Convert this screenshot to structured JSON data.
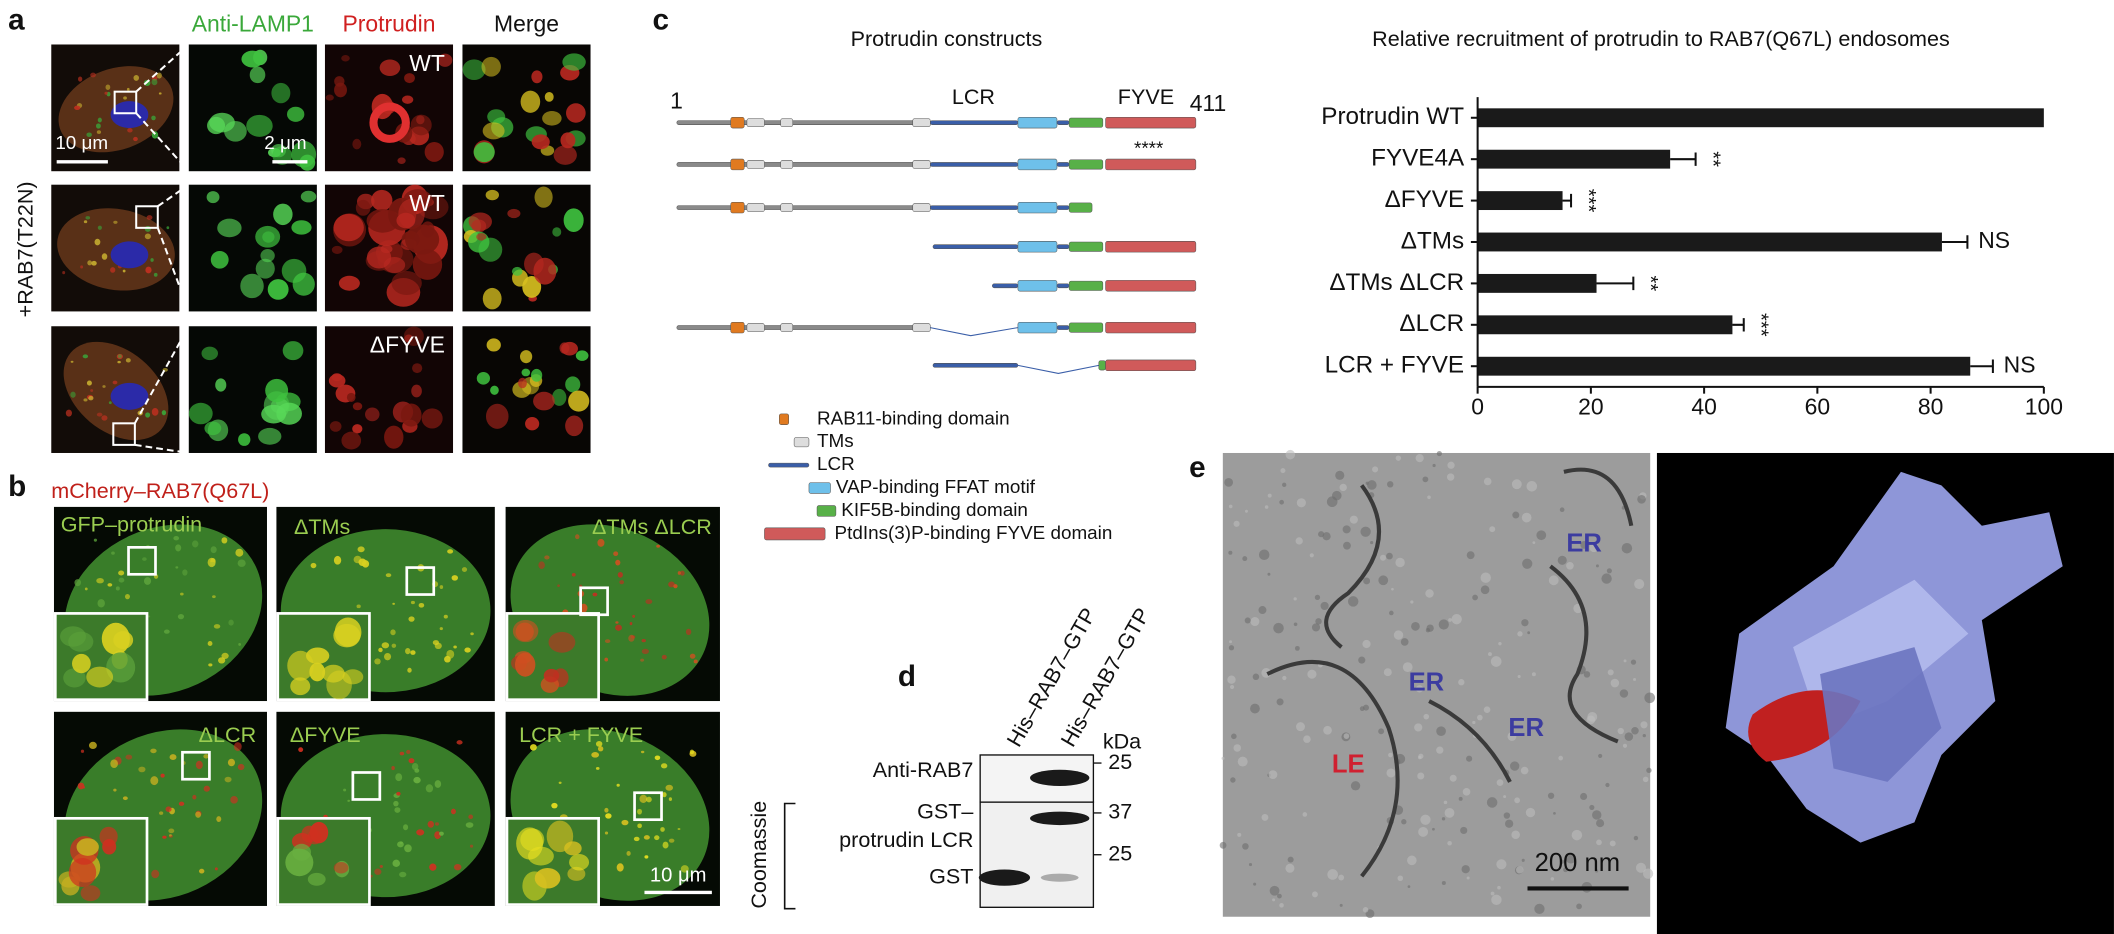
{
  "figure": {
    "a": {
      "label": "a",
      "columns": [
        "Anti-LAMP1",
        "Protrudin",
        "Merge"
      ],
      "row_label": "+RAB7(T22N)",
      "image_labels": [
        "WT",
        "WT",
        "ΔFYVE"
      ],
      "scale_bars": [
        "10 μm",
        "2 μm"
      ]
    },
    "b": {
      "label": "b",
      "title": "mCherry–RAB7(Q67L)",
      "image_labels": [
        "GFP–protrudin",
        "ΔTMs",
        "ΔTMs ΔLCR",
        "ΔLCR",
        "ΔFYVE",
        "LCR + FYVE"
      ],
      "scale_bar": "10 μm"
    },
    "c": {
      "label": "c",
      "constructs_title": "Protrudin constructs",
      "start": "1",
      "end": "411",
      "regions": [
        "LCR",
        "FYVE"
      ],
      "significance": "****",
      "legend": [
        "RAB11-binding domain",
        "TMs",
        "LCR",
        "VAP-binding FFAT motif",
        "KIF5B-binding domain",
        "PtdIns(3)P-binding FYVE domain"
      ]
    },
    "d": {
      "label": "d",
      "lanes": [
        "His–RAB7–GTP",
        "His–RAB7–GTP"
      ],
      "unit": "kDa",
      "rows": [
        "Anti-RAB7",
        "GST–",
        "protrudin LCR",
        "GST"
      ],
      "group": "Coomassie",
      "markers": [
        "25",
        "37",
        "25"
      ]
    },
    "e": {
      "label": "e",
      "labels": [
        "ER",
        "ER",
        "ER",
        "LE"
      ],
      "scale_bar": "200 nm"
    }
  },
  "chart_data": {
    "type": "bar",
    "orientation": "horizontal",
    "title": "Relative recruitment of protrudin to RAB7(Q67L) endosomes",
    "categories": [
      "Protrudin WT",
      "FYVE4A",
      "ΔFYVE",
      "ΔTMs",
      "ΔTMs ΔLCR",
      "ΔLCR",
      "LCR + FYVE"
    ],
    "values": [
      100,
      34,
      15,
      82,
      21,
      45,
      87
    ],
    "errors": [
      null,
      4.5,
      1.5,
      4.5,
      6.5,
      2,
      4
    ],
    "annotations": [
      null,
      "**",
      "***",
      "NS",
      "**",
      "***",
      "NS"
    ],
    "color": "#1a1a1a",
    "xlim": [
      0,
      100
    ],
    "xticks": [
      0,
      20,
      40,
      60,
      80,
      100
    ]
  }
}
